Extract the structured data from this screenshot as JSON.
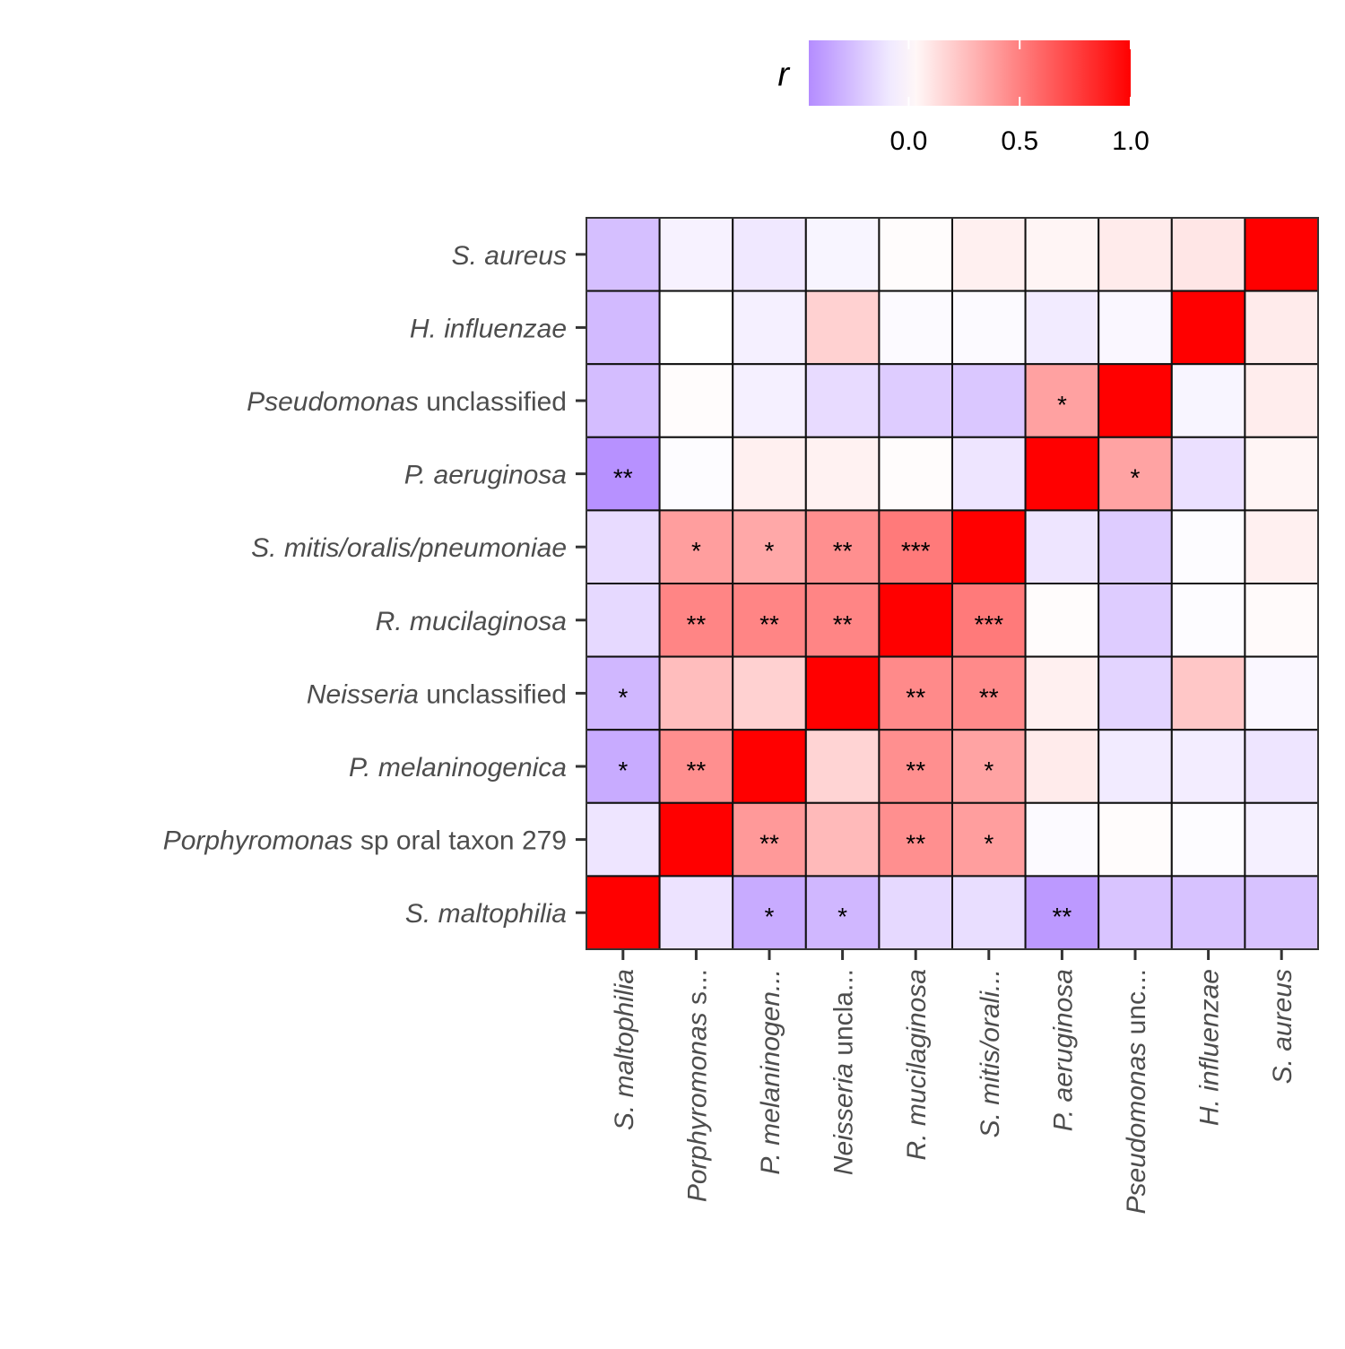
{
  "chart_data": {
    "type": "heatmap",
    "legend": {
      "title": "r",
      "position": "top",
      "ticks": [
        "0.0",
        "0.5",
        "1.0"
      ],
      "range": [
        -0.45,
        1.0
      ],
      "low_color": "#b48cff",
      "mid_color": "#ffffff",
      "high_color": "#ff0000"
    },
    "row_labels": [
      {
        "italic": "S.  aureus",
        "plain": ""
      },
      {
        "italic": "H.  influenzae",
        "plain": ""
      },
      {
        "italic": "Pseudomonas",
        "plain": " unclassified"
      },
      {
        "italic": "P.  aeruginosa",
        "plain": ""
      },
      {
        "italic": "S.  mitis/oralis/pneumoniae",
        "plain": ""
      },
      {
        "italic": "R.  mucilaginosa",
        "plain": ""
      },
      {
        "italic": "Neisseria",
        "plain": " unclassified"
      },
      {
        "italic": "P.  melaninogenica",
        "plain": ""
      },
      {
        "italic": "Porphyromonas",
        "plain": " sp oral taxon 279"
      },
      {
        "italic": "S.  maltophilia",
        "plain": ""
      }
    ],
    "column_labels": [
      {
        "italic": "S.  maltophilia",
        "plain": ""
      },
      {
        "italic": "Porphyromonas",
        "plain": " s..."
      },
      {
        "italic": "P.  melaninogen...",
        "plain": ""
      },
      {
        "italic": "Neisseria",
        "plain": " uncla..."
      },
      {
        "italic": "R.  mucilaginosa",
        "plain": ""
      },
      {
        "italic": "S.  mitis/orali...",
        "plain": ""
      },
      {
        "italic": "P.  aeruginosa",
        "plain": ""
      },
      {
        "italic": "Pseudomonas",
        "plain": " unc..."
      },
      {
        "italic": "H.  influenzae",
        "plain": ""
      },
      {
        "italic": "S.  aureus",
        "plain": ""
      }
    ],
    "values": [
      [
        -0.25,
        -0.05,
        -0.09,
        -0.04,
        0.01,
        0.06,
        0.04,
        0.08,
        0.1,
        1.0
      ],
      [
        -0.27,
        0.0,
        -0.06,
        0.18,
        -0.02,
        -0.02,
        -0.08,
        -0.03,
        1.0,
        0.08
      ],
      [
        -0.26,
        0.01,
        -0.06,
        -0.14,
        -0.2,
        -0.22,
        0.37,
        1.0,
        -0.04,
        0.07
      ],
      [
        -0.43,
        -0.01,
        0.06,
        0.05,
        0.01,
        -0.1,
        1.0,
        0.36,
        -0.12,
        0.04
      ],
      [
        -0.14,
        0.38,
        0.34,
        0.44,
        0.52,
        1.0,
        -0.1,
        -0.2,
        -0.01,
        0.06
      ],
      [
        -0.15,
        0.48,
        0.48,
        0.48,
        1.0,
        0.52,
        0.01,
        -0.2,
        -0.01,
        0.02
      ],
      [
        -0.28,
        0.26,
        0.18,
        1.0,
        0.46,
        0.46,
        0.06,
        -0.17,
        0.22,
        -0.03
      ],
      [
        -0.33,
        0.44,
        1.0,
        0.17,
        0.44,
        0.36,
        0.08,
        -0.08,
        -0.07,
        -0.1
      ],
      [
        -0.1,
        1.0,
        0.4,
        0.27,
        0.44,
        0.38,
        -0.02,
        0.01,
        -0.01,
        -0.06
      ],
      [
        1.0,
        -0.11,
        -0.33,
        -0.28,
        -0.15,
        -0.13,
        -0.4,
        -0.23,
        -0.24,
        -0.24
      ]
    ],
    "significance": [
      [
        "",
        "",
        "",
        "",
        "",
        "",
        "",
        "",
        "",
        ""
      ],
      [
        "",
        "",
        "",
        "",
        "",
        "",
        "",
        "",
        "",
        ""
      ],
      [
        "",
        "",
        "",
        "",
        "",
        "",
        "*",
        "",
        "",
        ""
      ],
      [
        "**",
        "",
        "",
        "",
        "",
        "",
        "",
        "*",
        "",
        ""
      ],
      [
        "",
        "*",
        "*",
        "**",
        "***",
        "",
        "",
        "",
        "",
        ""
      ],
      [
        "",
        "**",
        "**",
        "**",
        "",
        "***",
        "",
        "",
        "",
        ""
      ],
      [
        "*",
        "",
        "",
        "",
        "**",
        "**",
        "",
        "",
        "",
        ""
      ],
      [
        "*",
        "**",
        "",
        "",
        "**",
        "*",
        "",
        "",
        "",
        ""
      ],
      [
        "",
        "",
        "**",
        "",
        "**",
        "*",
        "",
        "",
        "",
        ""
      ],
      [
        "",
        "",
        "*",
        "*",
        "",
        "",
        "**",
        "",
        "",
        ""
      ]
    ]
  }
}
